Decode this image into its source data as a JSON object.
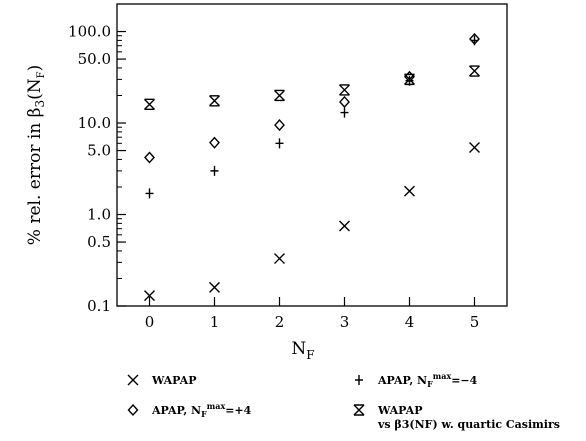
{
  "chart_data": {
    "type": "scatter",
    "ylabel": "% rel. error in β3(NF)",
    "xlabel": "NF",
    "x": [
      0,
      1,
      2,
      3,
      4,
      5
    ],
    "xlim": [
      -0.5,
      5.5
    ],
    "ylim": [
      0.1,
      200
    ],
    "yscale": "log",
    "x_ticks": [
      "0",
      "1",
      "2",
      "3",
      "4",
      "5"
    ],
    "y_ticks": [
      {
        "value": 0.1,
        "label": "0.1"
      },
      {
        "value": 0.5,
        "label": "0.5"
      },
      {
        "value": 1.0,
        "label": "1.0"
      },
      {
        "value": 5.0,
        "label": "5.0"
      },
      {
        "value": 10.0,
        "label": "10.0"
      },
      {
        "value": 50.0,
        "label": "50.0"
      },
      {
        "value": 100.0,
        "label": "100.0"
      }
    ],
    "series": [
      {
        "name": "WAPAP",
        "marker": "x",
        "values": [
          0.13,
          0.16,
          0.33,
          0.75,
          1.8,
          5.4
        ]
      },
      {
        "name": "APAP, NFmax=−4",
        "marker": "plus",
        "values": [
          1.7,
          3.0,
          6.0,
          13.0,
          29.0,
          80.0
        ]
      },
      {
        "name": "APAP, NFmax=+4",
        "marker": "diamond",
        "values": [
          4.2,
          6.1,
          9.5,
          17.0,
          32.0,
          83.0
        ]
      },
      {
        "name": "WAPAP vs β3(NF) w. quartic Casimirs",
        "marker": "xbar",
        "values": [
          16.0,
          17.5,
          20.0,
          23.0,
          30.0,
          37.0
        ]
      }
    ],
    "legend": {
      "placement": "below",
      "items": [
        {
          "marker": "x",
          "text": "WAPAP"
        },
        {
          "marker": "plus",
          "text": "APAP, NFmax=−4"
        },
        {
          "marker": "diamond",
          "text": "APAP, NFmax=+4"
        },
        {
          "marker": "xbar",
          "text": "WAPAP",
          "text2": "vs β3(NF) w. quartic Casimirs"
        }
      ]
    }
  }
}
